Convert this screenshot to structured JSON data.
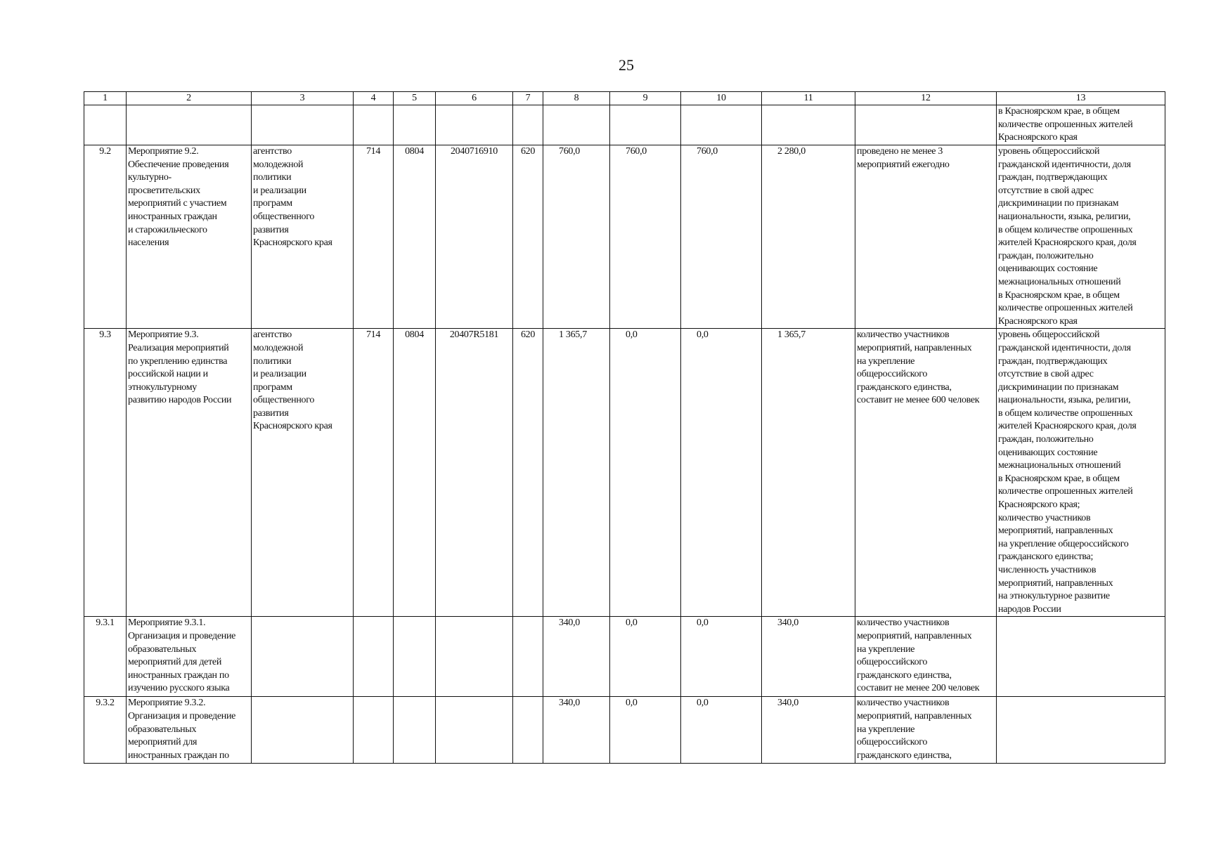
{
  "page_number": "25",
  "headers": [
    "1",
    "2",
    "3",
    "4",
    "5",
    "6",
    "7",
    "8",
    "9",
    "10",
    "11",
    "12",
    "13"
  ],
  "rows": [
    {
      "c1": "",
      "c2": "",
      "c3": "",
      "c4": "",
      "c5": "",
      "c6": "",
      "c7": "",
      "c8": "",
      "c9": "",
      "c10": "",
      "c11": "",
      "c12": "",
      "c13": "в Красноярском крае, в общем\nколичестве опрошенных жителей\nКрасноярского края"
    },
    {
      "c1": "9.2",
      "c2": "Мероприятие 9.2.\nОбеспечение проведения\nкультурно-\nпросветительских\nмероприятий с участием\nиностранных граждан\nи старожильческого\nнаселения",
      "c3": "агентство\nмолодежной\nполитики\nи реализации\nпрограмм\nобщественного\nразвития\nКрасноярского края",
      "c4": "714",
      "c5": "0804",
      "c6": "2040716910",
      "c7": "620",
      "c8": "760,0",
      "c9": "760,0",
      "c10": "760,0",
      "c11": "2 280,0",
      "c12": "проведено не менее 3\nмероприятий ежегодно",
      "c13": "уровень общероссийской\nгражданской идентичности, доля\nграждан, подтверждающих\nотсутствие в свой адрес\nдискриминации по признакам\nнациональности, языка, религии,\nв общем количестве опрошенных\nжителей Красноярского края, доля\nграждан, положительно\nоценивающих состояние\nмежнациональных отношений\nв Красноярском крае, в общем\nколичестве опрошенных жителей\nКрасноярского края"
    },
    {
      "c1": "9.3",
      "c2": "Мероприятие 9.3.\nРеализация мероприятий\nпо укреплению единства\nроссийской нации и\nэтнокультурному\nразвитию народов России",
      "c3": "агентство\nмолодежной\nполитики\nи реализации\nпрограмм\nобщественного\nразвития\nКрасноярского края",
      "c4": "714",
      "c5": "0804",
      "c6": "20407R5181",
      "c7": "620",
      "c8": "1 365,7",
      "c9": "0,0",
      "c10": "0,0",
      "c11": "1 365,7",
      "c12": "количество участников\nмероприятий, направленных\nна укрепление\nобщероссийского\nгражданского единства,\nсоставит не менее 600 человек",
      "c13": "уровень общероссийской\nгражданской идентичности, доля\nграждан, подтверждающих\nотсутствие в свой адрес\nдискриминации по признакам\nнациональности, языка, религии,\nв общем количестве опрошенных\nжителей Красноярского края, доля\nграждан, положительно\nоценивающих состояние\nмежнациональных отношений\nв Красноярском крае, в общем\nколичестве опрошенных жителей\nКрасноярского края;\nколичество участников\nмероприятий, направленных\nна укрепление общероссийского\nгражданского единства;\nчисленность участников\nмероприятий, направленных\nна этнокультурное развитие\nнародов России"
    },
    {
      "c1": "9.3.1",
      "c2": "Мероприятие 9.3.1.\nОрганизация и проведение\nобразовательных\nмероприятий для детей\nиностранных граждан по\nизучению русского языка",
      "c3": "",
      "c4": "",
      "c5": "",
      "c6": "",
      "c7": "",
      "c8": "340,0",
      "c9": "0,0",
      "c10": "0,0",
      "c11": "340,0",
      "c12": "количество участников\nмероприятий, направленных\nна укрепление\nобщероссийского\nгражданского единства,\nсоставит не менее 200 человек",
      "c13": ""
    },
    {
      "c1": "9.3.2",
      "c2": "Мероприятие 9.3.2.\nОрганизация и проведение\nобразовательных\nмероприятий для\nиностранных граждан по",
      "c3": "",
      "c4": "",
      "c5": "",
      "c6": "",
      "c7": "",
      "c8": "340,0",
      "c9": "0,0",
      "c10": "0,0",
      "c11": "340,0",
      "c12": "количество участников\nмероприятий, направленных\nна укрепление\nобщероссийского\nгражданского единства,",
      "c13": ""
    }
  ]
}
